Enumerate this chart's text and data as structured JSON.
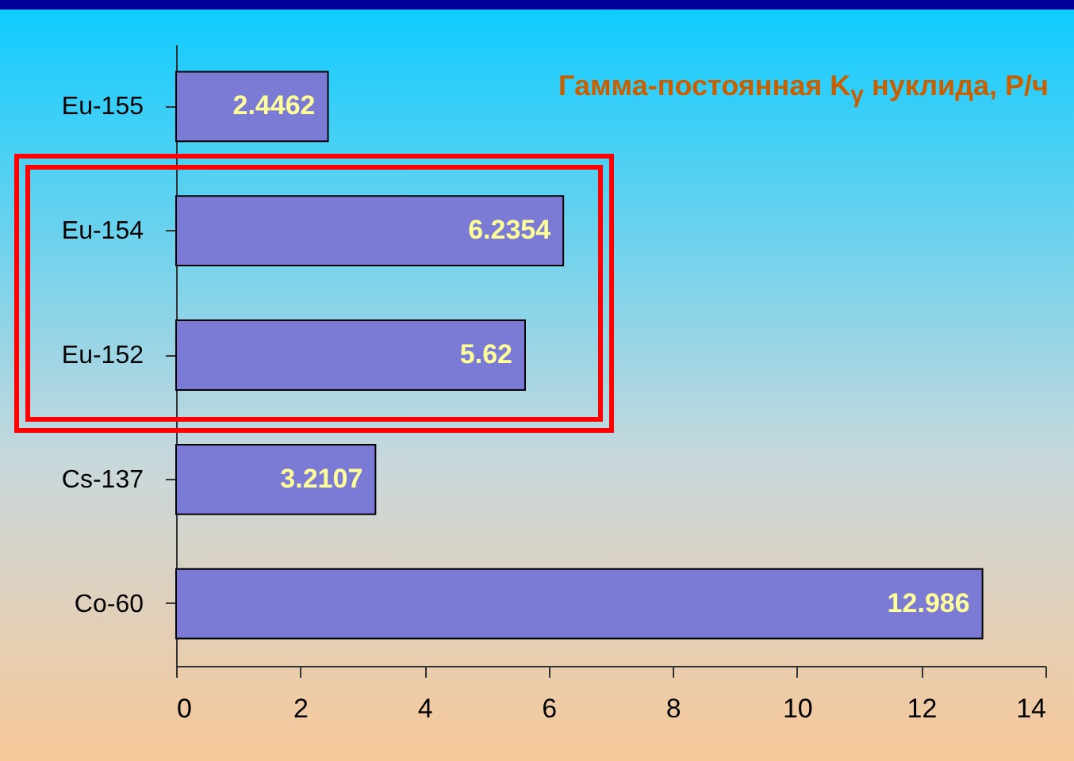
{
  "chart_data": {
    "type": "bar",
    "orientation": "horizontal",
    "title": "Гамма-постоянная K$_{γ}$ нуклида, Р/ч",
    "categories": [
      "Eu-155",
      "Eu-154",
      "Eu-152",
      "Cs-137",
      "Co-60"
    ],
    "values": [
      2.4462,
      6.2354,
      5.62,
      3.2107,
      12.986
    ],
    "color": "#7b7bd6",
    "xlim": [
      0,
      14
    ],
    "xticks": [
      0,
      2,
      4,
      6,
      8,
      10,
      12,
      14
    ],
    "grid": false,
    "data_labels": true
  }
}
